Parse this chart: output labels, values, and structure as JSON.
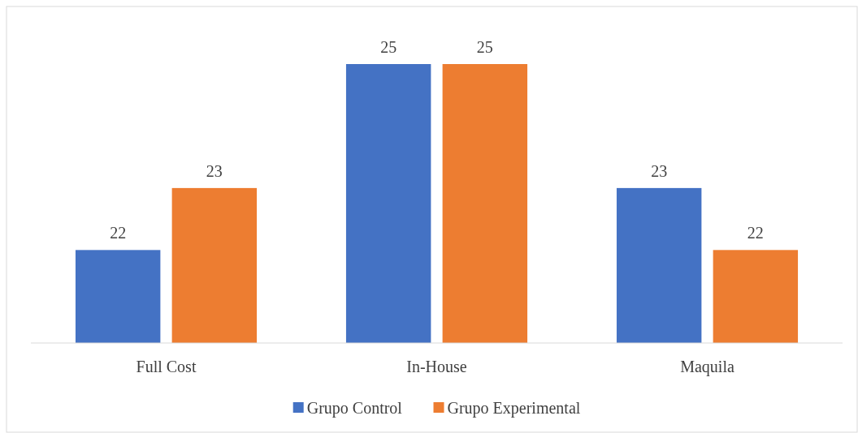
{
  "chart_data": {
    "type": "bar",
    "categories": [
      "Full Cost",
      "In-House",
      "Maquila"
    ],
    "series": [
      {
        "name": "Grupo Control",
        "color": "#4472c4",
        "values": [
          22,
          25,
          23
        ]
      },
      {
        "name": "Grupo Experimental",
        "color": "#ed7d31",
        "values": [
          23,
          25,
          22
        ]
      }
    ],
    "ylim": [
      20.5,
      25
    ],
    "data_labels": true,
    "legend": "bottom",
    "grid": false
  }
}
